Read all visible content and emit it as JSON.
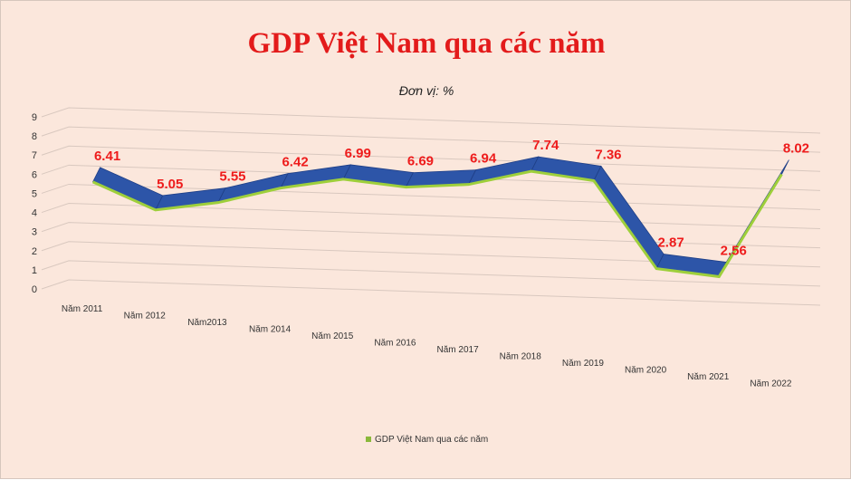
{
  "chart_data": {
    "type": "line",
    "title": "GDP Việt Nam qua các năm",
    "subtitle": "Đơn vị: %",
    "categories": [
      "Năm 2011",
      "Năm 2012",
      "Năm2013",
      "Năm 2014",
      "Năm 2015",
      "Năm 2016",
      "Năm 2017",
      "Năm 2018",
      "Năm 2019",
      "Năm 2020",
      "Năm 2021",
      "Năm 2022"
    ],
    "series": [
      {
        "name": "GDP Việt Nam qua các năm",
        "values": [
          6.41,
          5.05,
          5.55,
          6.42,
          6.99,
          6.69,
          6.94,
          7.74,
          7.36,
          2.87,
          2.56,
          8.02
        ],
        "labels": [
          "6.41",
          "5.05",
          "5.55",
          "6.42",
          "6.99",
          "6.69",
          "6.94",
          "7.74",
          "7.36",
          "2.87",
          "2.56",
          "8.02"
        ]
      }
    ],
    "yticks": [
      "0",
      "1",
      "2",
      "3",
      "4",
      "5",
      "6",
      "7",
      "8",
      "9"
    ],
    "ylim": [
      0,
      9
    ],
    "style": "3d-ribbon",
    "grid": true,
    "legend_position": "bottom",
    "colors": {
      "ribbon_top": "#2d55a8",
      "ribbon_side": "#1f3f86",
      "ribbon_edge": "#9ecf3b",
      "data_label": "#ee1c1c",
      "title": "#e31b1b",
      "background": "#fbe7dc",
      "legend_marker": "#8ab83a"
    }
  }
}
